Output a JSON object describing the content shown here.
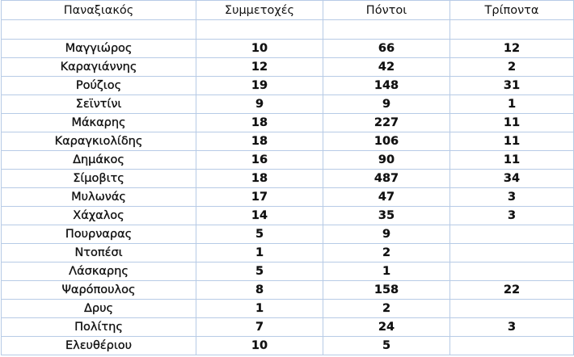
{
  "table": {
    "headers": [
      "Παναξιακός",
      "Συμμετοχές",
      "Πόντοι",
      "Τρίποντα"
    ],
    "rows": [
      [
        "Μαγγιώρος",
        "10",
        "66",
        "12"
      ],
      [
        "Καραγιάννης",
        "12",
        "42",
        "2"
      ],
      [
        "Ρούζιος",
        "19",
        "148",
        "31"
      ],
      [
        "Σεϊντίνι",
        "9",
        "9",
        "1"
      ],
      [
        "Μάκαρης",
        "18",
        "227",
        "11"
      ],
      [
        "Καραγκιολίδης",
        "18",
        "106",
        "11"
      ],
      [
        "Δημάκος",
        "16",
        "90",
        "11"
      ],
      [
        "Σίμοβιτς",
        "18",
        "487",
        "34"
      ],
      [
        "Μυλωνάς",
        "17",
        "47",
        "3"
      ],
      [
        "Χάχαλος",
        "14",
        "35",
        "3"
      ],
      [
        "Πουρναρας",
        "5",
        "9",
        ""
      ],
      [
        "Ντοπέσι",
        "1",
        "2",
        ""
      ],
      [
        "Λάσκαρης",
        "5",
        "1",
        ""
      ],
      [
        "Ψαρόπουλος",
        "8",
        "158",
        "22"
      ],
      [
        "Δρυς",
        "1",
        "2",
        ""
      ],
      [
        "Πολίτης",
        "7",
        "24",
        "3"
      ],
      [
        "Ελευθέριου",
        "10",
        "5",
        ""
      ]
    ]
  }
}
